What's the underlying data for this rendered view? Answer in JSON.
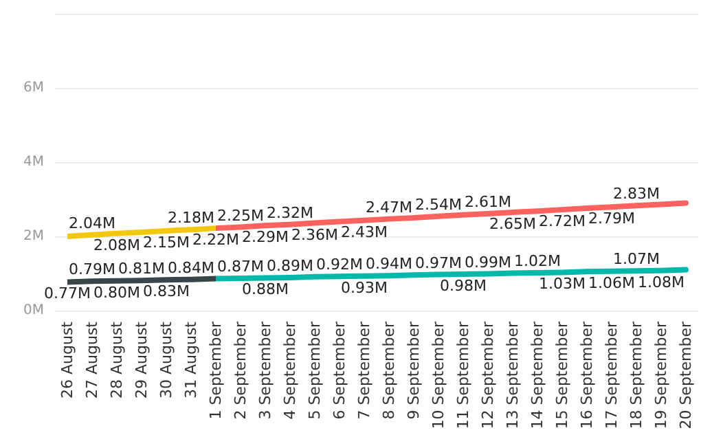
{
  "chart_data": {
    "type": "line",
    "categories": [
      "26 August",
      "27 August",
      "28 August",
      "29 August",
      "30 August",
      "31 August",
      "1 September",
      "2 September",
      "3 September",
      "4 September",
      "5 September",
      "6 September",
      "7 September",
      "8 September",
      "9 September",
      "10 September",
      "11 September",
      "12 September",
      "13 September",
      "14 September",
      "15 September",
      "16 September",
      "17 September",
      "18 September",
      "19 September",
      "20 September"
    ],
    "series": [
      {
        "colors": [
          "#f2c80f",
          "#f2c80f",
          "#f2c80f",
          "#f2c80f",
          "#f2c80f",
          "#f2c80f",
          "#fd625e",
          "#fd625e",
          "#fd625e",
          "#fd625e",
          "#fd625e",
          "#fd625e",
          "#fd625e",
          "#fd625e",
          "#fd625e",
          "#fd625e",
          "#fd625e",
          "#fd625e",
          "#fd625e",
          "#fd625e",
          "#fd625e",
          "#fd625e",
          "#fd625e",
          "#fd625e",
          "#fd625e",
          "#fd625e"
        ],
        "values": [
          2.0,
          2.04,
          2.08,
          2.11,
          2.15,
          2.18,
          2.22,
          2.25,
          2.29,
          2.32,
          2.36,
          2.4,
          2.43,
          2.47,
          2.5,
          2.54,
          2.58,
          2.61,
          2.65,
          2.68,
          2.72,
          2.76,
          2.79,
          2.83,
          2.86,
          2.9
        ],
        "value_labels": [
          null,
          "2.04M",
          "2.08M",
          null,
          "2.15M",
          "2.18M",
          "2.22M",
          "2.25M",
          "2.29M",
          "2.32M",
          "2.36M",
          null,
          "2.43M",
          "2.47M",
          null,
          "2.54M",
          null,
          "2.61M",
          "2.65M",
          null,
          "2.72M",
          null,
          "2.79M",
          "2.83M",
          null,
          null
        ]
      },
      {
        "colors": [
          "#374649",
          "#374649",
          "#374649",
          "#374649",
          "#374649",
          "#374649",
          "#01b8aa",
          "#01b8aa",
          "#01b8aa",
          "#01b8aa",
          "#01b8aa",
          "#01b8aa",
          "#01b8aa",
          "#01b8aa",
          "#01b8aa",
          "#01b8aa",
          "#01b8aa",
          "#01b8aa",
          "#01b8aa",
          "#01b8aa",
          "#01b8aa",
          "#01b8aa",
          "#01b8aa",
          "#01b8aa",
          "#01b8aa",
          "#01b8aa"
        ],
        "values": [
          0.77,
          0.79,
          0.8,
          0.81,
          0.83,
          0.84,
          0.86,
          0.87,
          0.88,
          0.89,
          0.91,
          0.92,
          0.93,
          0.94,
          0.96,
          0.97,
          0.98,
          0.99,
          1.01,
          1.02,
          1.03,
          1.05,
          1.06,
          1.07,
          1.08,
          1.1
        ],
        "value_labels": [
          "0.77M",
          "0.79M",
          "0.80M",
          "0.81M",
          "0.83M",
          "0.84M",
          null,
          "0.87M",
          "0.88M",
          "0.89M",
          null,
          "0.92M",
          "0.93M",
          "0.94M",
          null,
          "0.97M",
          "0.98M",
          "0.99M",
          null,
          "1.02M",
          "1.03M",
          null,
          "1.06M",
          "1.07M",
          "1.08M",
          null
        ]
      }
    ],
    "ylim": [
      0,
      8
    ],
    "yticks": [
      {
        "value": 0,
        "label": "0M"
      },
      {
        "value": 2,
        "label": "2M"
      },
      {
        "value": 4,
        "label": "4M"
      },
      {
        "value": 6,
        "label": "6M"
      },
      {
        "value": 8,
        "label": null
      }
    ],
    "grid": "y",
    "marker": "none",
    "line_style": "solid"
  }
}
